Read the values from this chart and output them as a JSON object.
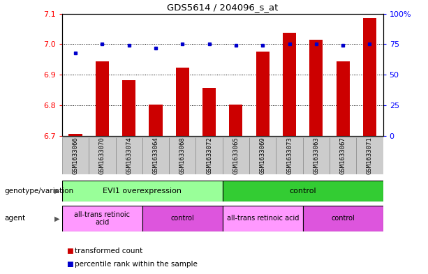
{
  "title": "GDS5614 / 204096_s_at",
  "samples": [
    "GSM1633066",
    "GSM1633070",
    "GSM1633074",
    "GSM1633064",
    "GSM1633068",
    "GSM1633072",
    "GSM1633065",
    "GSM1633069",
    "GSM1633073",
    "GSM1633063",
    "GSM1633067",
    "GSM1633071"
  ],
  "bar_values": [
    6.705,
    6.943,
    6.882,
    6.802,
    6.924,
    6.856,
    6.802,
    6.975,
    7.038,
    7.015,
    6.943,
    7.085
  ],
  "dot_values": [
    68,
    75,
    74,
    72,
    75,
    75,
    74,
    74,
    75,
    75,
    74,
    75
  ],
  "ylim_left": [
    6.7,
    7.1
  ],
  "ylim_right": [
    0,
    100
  ],
  "yticks_left": [
    6.7,
    6.8,
    6.9,
    7.0,
    7.1
  ],
  "yticks_right": [
    0,
    25,
    50,
    75,
    100
  ],
  "bar_color": "#cc0000",
  "dot_color": "#0000cc",
  "bar_width": 0.5,
  "genotype_groups": [
    {
      "label": "EVI1 overexpression",
      "start": 0,
      "end": 6,
      "color": "#99ff99"
    },
    {
      "label": "control",
      "start": 6,
      "end": 12,
      "color": "#33cc33"
    }
  ],
  "agent_groups": [
    {
      "label": "all-trans retinoic\nacid",
      "start": 0,
      "end": 3,
      "color": "#ff99ff"
    },
    {
      "label": "control",
      "start": 3,
      "end": 6,
      "color": "#dd55dd"
    },
    {
      "label": "all-trans retinoic acid",
      "start": 6,
      "end": 9,
      "color": "#ff99ff"
    },
    {
      "label": "control",
      "start": 9,
      "end": 12,
      "color": "#dd55dd"
    }
  ],
  "legend_items": [
    {
      "label": "transformed count",
      "color": "#cc0000"
    },
    {
      "label": "percentile rank within the sample",
      "color": "#0000cc"
    }
  ],
  "background_color": "#ffffff",
  "tick_label_bg": "#cccccc"
}
